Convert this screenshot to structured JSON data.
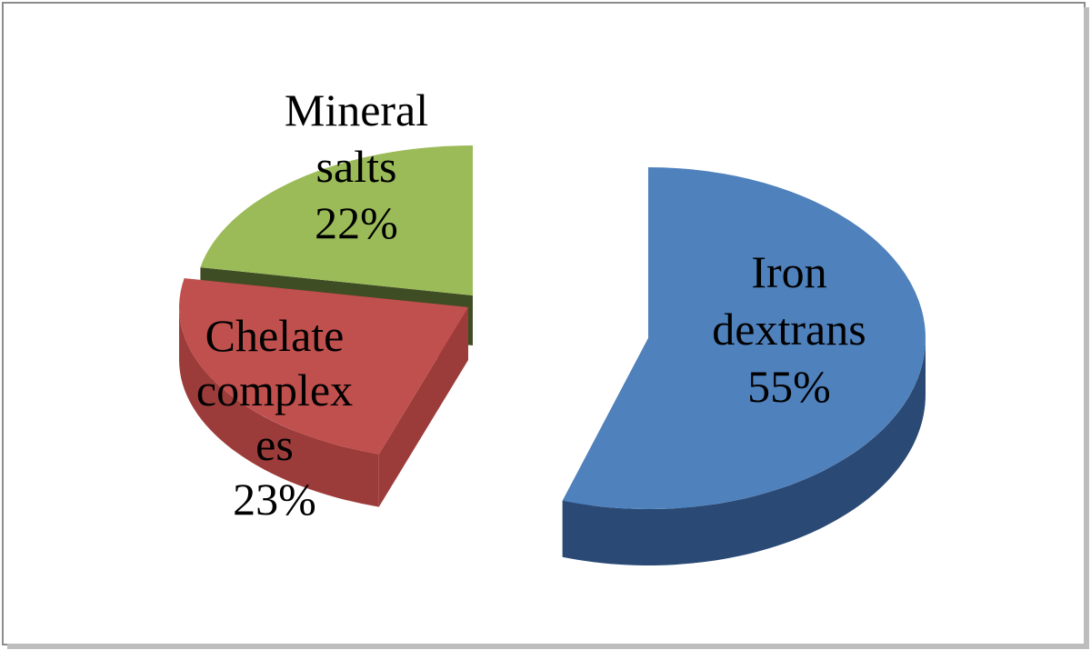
{
  "chart_data": {
    "type": "pie",
    "three_d": true,
    "exploded": true,
    "title": "",
    "legend": "none",
    "slices": [
      {
        "name": "Iron dextrans",
        "value": 55,
        "label_lines": [
          "Iron",
          "dextrans",
          "55%"
        ],
        "color": "#4f81bd",
        "side_color": "#2a4a75"
      },
      {
        "name": "Chelate complexes",
        "value": 23,
        "label_lines": [
          "Chelate",
          "complex",
          "es",
          "23%"
        ],
        "color": "#c0504d",
        "side_color": "#9c3c3a"
      },
      {
        "name": "Mineral salts",
        "value": 22,
        "label_lines": [
          "Mineral",
          "salts",
          "22%"
        ],
        "color": "#9bbb59",
        "side_color": "#3f4d24"
      }
    ]
  }
}
